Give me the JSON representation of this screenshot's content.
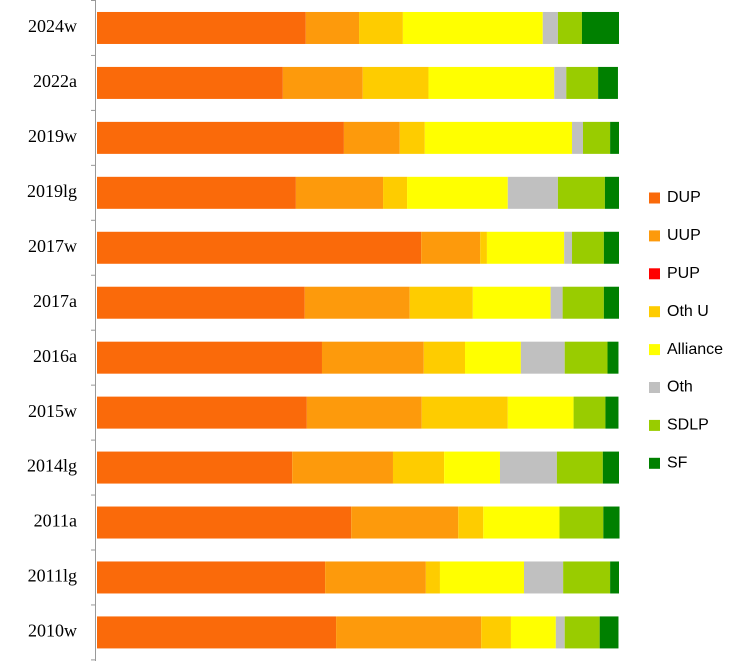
{
  "chart_data": {
    "type": "stacked-bar-horizontal",
    "categories": [
      "2024w",
      "2022a",
      "2019w",
      "2019lg",
      "2017w",
      "2017a",
      "2016a",
      "2015w",
      "2014lg",
      "2011a",
      "2011lg",
      "2010w"
    ],
    "series": [
      {
        "name": "DUP",
        "color": "#fa6a0a",
        "values": [
          40.0,
          35.6,
          47.3,
          38.1,
          62.1,
          39.8,
          43.1,
          40.2,
          37.4,
          48.7,
          43.7,
          45.8
        ]
      },
      {
        "name": "UUP",
        "color": "#fd9a0c",
        "values": [
          10.2,
          15.3,
          10.7,
          16.7,
          11.3,
          20.1,
          19.5,
          22.0,
          19.3,
          20.5,
          19.3,
          27.8
        ]
      },
      {
        "name": "PUP",
        "color": "#ff0000",
        "values": [
          0,
          0,
          0,
          0,
          0,
          0,
          0,
          0,
          0,
          0,
          0,
          0
        ]
      },
      {
        "name": "Oth U",
        "color": "#fecc00",
        "values": [
          8.4,
          12.6,
          4.8,
          4.6,
          1.3,
          12.1,
          7.9,
          16.5,
          9.8,
          4.8,
          2.7,
          5.7
        ]
      },
      {
        "name": "Alliance",
        "color": "#ffff00",
        "values": [
          26.8,
          24.1,
          28.2,
          19.3,
          14.8,
          14.9,
          10.7,
          12.6,
          10.7,
          14.6,
          16.1,
          8.6
        ]
      },
      {
        "name": "Oth",
        "color": "#c0c0c0",
        "values": [
          2.9,
          2.3,
          2.1,
          9.6,
          1.5,
          2.3,
          8.4,
          0,
          10.9,
          0,
          7.5,
          1.7
        ]
      },
      {
        "name": "SDLP",
        "color": "#99cc00",
        "values": [
          4.6,
          6.1,
          5.2,
          9.0,
          6.1,
          7.9,
          8.2,
          6.1,
          8.8,
          8.4,
          9.0,
          6.7
        ]
      },
      {
        "name": "SF",
        "color": "#008000",
        "values": [
          7.1,
          3.8,
          1.7,
          2.7,
          2.9,
          2.9,
          2.1,
          2.5,
          3.1,
          3.1,
          1.7,
          3.6
        ]
      }
    ]
  }
}
